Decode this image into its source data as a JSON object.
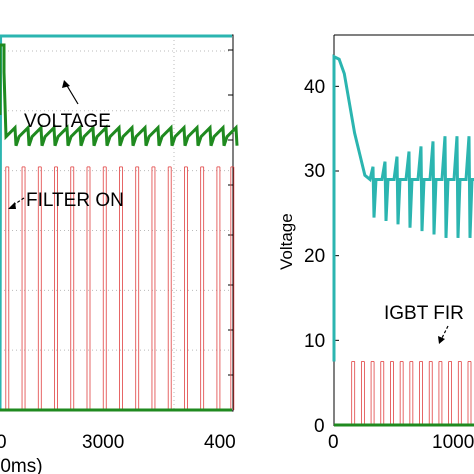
{
  "chart_data": [
    {
      "type": "line",
      "title": "",
      "xlabel": "(0ms)",
      "ylabel": "",
      "x_tick_labels": [
        "0",
        "3000",
        "400"
      ],
      "grid": true,
      "annotations": [
        "VOLTAGE",
        "FILTER ON"
      ],
      "series": [
        {
          "color": "#1f8a1f",
          "x": [
            0,
            250,
            500,
            750,
            1000,
            1250,
            1500,
            1750,
            2000,
            2250,
            2500,
            2750,
            3000,
            3250,
            3500,
            3750,
            4000
          ],
          "values": [
            0.72,
            0.72,
            0.71,
            0.72,
            0.72,
            0.71,
            0.72,
            0.72,
            0.71,
            0.72,
            0.72,
            0.71,
            0.72,
            0.72,
            0.71,
            0.72,
            0.72
          ]
        },
        {
          "color": "#2bb5b0",
          "x": [
            -200,
            0,
            10,
            4000
          ],
          "values": [
            0.0,
            0.0,
            1.0,
            1.0
          ]
        },
        {
          "color": "#e04040",
          "pulse_x": [
            100,
            380,
            660,
            940,
            1220,
            1500,
            1780,
            2060,
            2340,
            2620,
            2900,
            3180,
            3460,
            3740,
            3980
          ],
          "pulse_level": 0.65
        }
      ]
    },
    {
      "type": "line",
      "title": "",
      "xlabel": "",
      "ylabel": "Voltage",
      "y_tick_labels": [
        "0",
        "10",
        "20",
        "30",
        "40"
      ],
      "x_tick_labels": [
        "0",
        "1000"
      ],
      "ylim": [
        0,
        45
      ],
      "grid": false,
      "annotations": [
        "IGBT FIR"
      ],
      "series": [
        {
          "color": "#2bb5b0",
          "x": [
            0,
            50,
            100,
            150,
            200,
            250,
            300,
            350,
            400,
            500,
            600,
            700,
            800,
            900,
            1000,
            1100,
            1200,
            1300
          ],
          "values": [
            43.5,
            43.2,
            41.5,
            38.0,
            34.5,
            32.0,
            29.5,
            29.0,
            29.0,
            29.0,
            29.0,
            29.0,
            29.0,
            29.0,
            29.0,
            29.0,
            29.0,
            29.0
          ]
        },
        {
          "color": "#e04040",
          "pulse_x": [
            90,
            180,
            270,
            360,
            450,
            540,
            630,
            720,
            810,
            900,
            990,
            1080,
            1170,
            1260
          ],
          "pulse_level": 7.5
        },
        {
          "color": "#1f8a1f",
          "x": [
            0,
            1300
          ],
          "values": [
            0,
            0
          ]
        }
      ]
    }
  ]
}
